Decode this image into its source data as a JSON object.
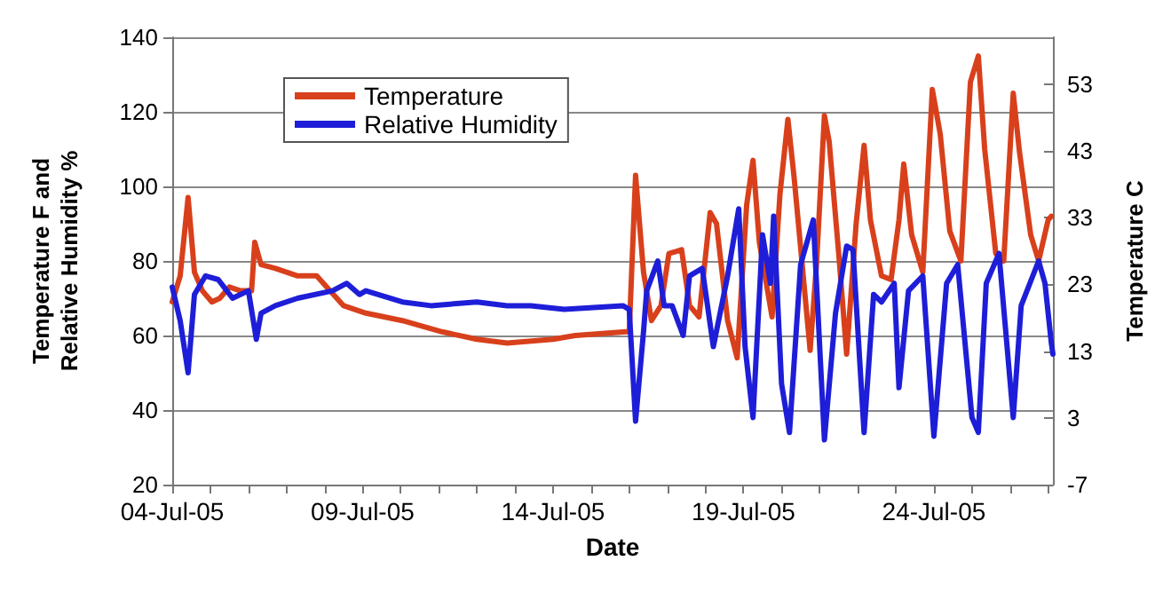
{
  "chart_data": {
    "type": "line",
    "xlabel": "Date",
    "ylabel": "Temperature F and\nRelative Humidity %",
    "y2label": "Temperature C",
    "xlim": [
      "--07-04",
      "--07-27T03:00"
    ],
    "xticks": [
      {
        "value": "--07-04",
        "label": "04-Jul-05"
      },
      {
        "value": "--07-05",
        "label": null
      },
      {
        "value": "--07-06",
        "label": null
      },
      {
        "value": "--07-07",
        "label": null
      },
      {
        "value": "--07-08",
        "label": null
      },
      {
        "value": "--07-09",
        "label": "09-Jul-05"
      },
      {
        "value": "--07-10",
        "label": null
      },
      {
        "value": "--07-11",
        "label": null
      },
      {
        "value": "--07-12",
        "label": null
      },
      {
        "value": "--07-13",
        "label": null
      },
      {
        "value": "--07-14",
        "label": "14-Jul-05"
      },
      {
        "value": "--07-15",
        "label": null
      },
      {
        "value": "--07-16",
        "label": null
      },
      {
        "value": "--07-17",
        "label": null
      },
      {
        "value": "--07-18",
        "label": null
      },
      {
        "value": "--07-19",
        "label": "19-Jul-05"
      },
      {
        "value": "--07-20",
        "label": null
      },
      {
        "value": "--07-21",
        "label": null
      },
      {
        "value": "--07-22",
        "label": null
      },
      {
        "value": "--07-23",
        "label": null
      },
      {
        "value": "--07-24",
        "label": "24-Jul-05"
      },
      {
        "value": "--07-25",
        "label": null
      },
      {
        "value": "--07-26",
        "label": null
      },
      {
        "value": "--07-27",
        "label": null
      }
    ],
    "ylim": [
      20,
      140
    ],
    "yticks": [
      20,
      40,
      60,
      80,
      100,
      120,
      140
    ],
    "y2lim": [
      -7,
      60
    ],
    "y2ticks": [
      -7,
      3,
      13,
      23,
      33,
      43,
      53
    ],
    "grid": "y",
    "legend": "top left",
    "marker": "none",
    "line_style": "solid",
    "series": [
      {
        "name": "Temperature",
        "color": "#d8401c",
        "x": [
          "--07-04T00:00",
          "--07-04T05:00",
          "--07-04T10:00",
          "--07-04T14:00",
          "--07-04T19:00",
          "--07-05T01:00",
          "--07-05T06:00",
          "--07-05T12:00",
          "--07-05T19:00",
          "--07-06T02:00",
          "--07-06T04:00",
          "--07-06T08:00",
          "--07-06T17:00",
          "--07-07T07:00",
          "--07-07T19:00",
          "--07-08T12:00",
          "--07-09T02:00",
          "--07-10T01:00",
          "--07-11T02:00",
          "--07-12T00:00",
          "--07-12T19:00",
          "--07-14T00:00",
          "--07-14T14:00",
          "--07-15T22:00",
          "--07-16T00:00",
          "--07-16T04:00",
          "--07-16T09:00",
          "--07-16T14:00",
          "--07-16T20:00",
          "--07-17T01:00",
          "--07-17T09:00",
          "--07-17T14:00",
          "--07-17T20:00",
          "--07-18T03:00",
          "--07-18T07:00",
          "--07-18T14:00",
          "--07-18T20:00",
          "--07-19T02:00",
          "--07-19T06:00",
          "--07-19T10:00",
          "--07-19T18:00",
          "--07-19T23:00",
          "--07-20T04:00",
          "--07-20T08:00",
          "--07-20T18:00",
          "--07-20T22:00",
          "--07-21T03:00",
          "--07-21T06:00",
          "--07-21T12:00",
          "--07-21T17:00",
          "--07-21T23:00",
          "--07-22T04:00",
          "--07-22T08:00",
          "--07-22T15:00",
          "--07-22T21:00",
          "--07-23T02:00",
          "--07-23T05:00",
          "--07-23T10:00",
          "--07-23T17:00",
          "--07-23T23:00",
          "--07-24T04:00",
          "--07-24T10:00",
          "--07-24T17:00",
          "--07-24T23:00",
          "--07-25T04:00",
          "--07-25T08:00",
          "--07-25T15:00",
          "--07-25T20:00",
          "--07-26T02:00",
          "--07-26T06:00",
          "--07-26T13:00",
          "--07-26T18:00",
          "--07-27T00:00",
          "--07-27T02:00"
        ],
        "values": [
          69,
          76,
          97,
          77,
          72,
          69,
          70,
          73,
          72,
          72,
          85,
          79,
          78,
          76,
          76,
          68,
          66,
          64,
          61,
          59,
          58,
          59,
          60,
          61,
          61,
          103,
          77,
          64,
          68,
          82,
          83,
          68,
          65,
          93,
          90,
          64,
          54,
          95,
          107,
          85,
          65,
          98,
          118,
          102,
          56,
          79,
          119,
          112,
          82,
          55,
          90,
          111,
          91,
          76,
          75,
          91,
          106,
          87,
          77,
          126,
          114,
          88,
          80,
          128,
          135,
          110,
          82,
          80,
          125,
          109,
          87,
          80,
          91,
          92
        ]
      },
      {
        "name": "Relative Humidity",
        "color": "#1e1ed8",
        "x": [
          "--07-04T00:00",
          "--07-04T05:00",
          "--07-04T10:00",
          "--07-04T14:00",
          "--07-04T21:00",
          "--07-05T05:00",
          "--07-05T14:00",
          "--07-06T00:00",
          "--07-06T05:00",
          "--07-06T08:00",
          "--07-06T17:00",
          "--07-07T07:00",
          "--07-08T05:00",
          "--07-08T14:00",
          "--07-08T22:00",
          "--07-09T02:00",
          "--07-10T01:00",
          "--07-10T19:00",
          "--07-12T00:00",
          "--07-12T19:00",
          "--07-13T10:00",
          "--07-14T07:00",
          "--07-15T20:00",
          "--07-16T00:00",
          "--07-16T04:00",
          "--07-16T09:00",
          "--07-16T11:00",
          "--07-16T18:00",
          "--07-16T22:00",
          "--07-17T03:00",
          "--07-17T10:00",
          "--07-17T14:00",
          "--07-17T22:00",
          "--07-18T05:00",
          "--07-18T14:00",
          "--07-18T21:00",
          "--07-19T01:00",
          "--07-19T06:00",
          "--07-19T12:00",
          "--07-19T17:00",
          "--07-19T19:00",
          "--07-20T00:00",
          "--07-20T05:00",
          "--07-20T12:00",
          "--07-20T20:00",
          "--07-21T03:00",
          "--07-21T10:00",
          "--07-21T17:00",
          "--07-21T21:00",
          "--07-22T04:00",
          "--07-22T10:00",
          "--07-22T15:00",
          "--07-22T23:00",
          "--07-23T02:00",
          "--07-23T08:00",
          "--07-23T17:00",
          "--07-24T00:00",
          "--07-24T08:00",
          "--07-24T15:00",
          "--07-25T00:00",
          "--07-25T04:00",
          "--07-25T09:00",
          "--07-25T17:00",
          "--07-26T02:00",
          "--07-26T07:00",
          "--07-26T18:00",
          "--07-26T22:00",
          "--07-27T02:00",
          "--07-27T03:00"
        ],
        "values": [
          73,
          64,
          50,
          71,
          76,
          75,
          70,
          72,
          59,
          66,
          68,
          70,
          72,
          74,
          71,
          72,
          69,
          68,
          69,
          68,
          68,
          67,
          68,
          67,
          37,
          61,
          72,
          80,
          68,
          68,
          60,
          76,
          78,
          57,
          76,
          94,
          57,
          38,
          87,
          74,
          92,
          47,
          34,
          79,
          91,
          32,
          66,
          84,
          83,
          34,
          71,
          69,
          74,
          46,
          72,
          76,
          33,
          74,
          79,
          38,
          34,
          74,
          82,
          38,
          68,
          80,
          74,
          58,
          55
        ]
      }
    ]
  }
}
